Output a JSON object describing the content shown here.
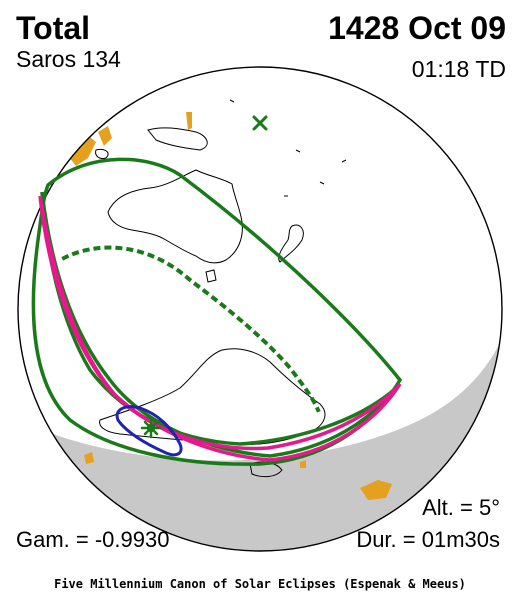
{
  "header": {
    "eclipse_type": "Total",
    "saros": "Saros 134",
    "date": "1428 Oct 09",
    "time": "01:18 TD"
  },
  "stats": {
    "altitude": "Alt. =  5°",
    "gamma": "Gam. = -0.9930",
    "duration": "Dur. = 01m30s"
  },
  "footer": {
    "credit": "Five Millennium Canon of Solar Eclipses (Espenak & Meeus)"
  },
  "colors": {
    "globe_fill": "#ffffff",
    "night_side": "#c8c8c8",
    "coastline": "#000000",
    "penumbra_limit": "#1a7a1a",
    "umbral_path": "#e6198c",
    "sunrise_sunset_curve": "#1f23b0",
    "central_line_dots": "#1a7a1a",
    "twilight_patches": "#e6a020"
  },
  "icons": {
    "greatest_eclipse_marker": "eight-point-star-icon",
    "subsolar_marker": "x-cross-icon"
  }
}
